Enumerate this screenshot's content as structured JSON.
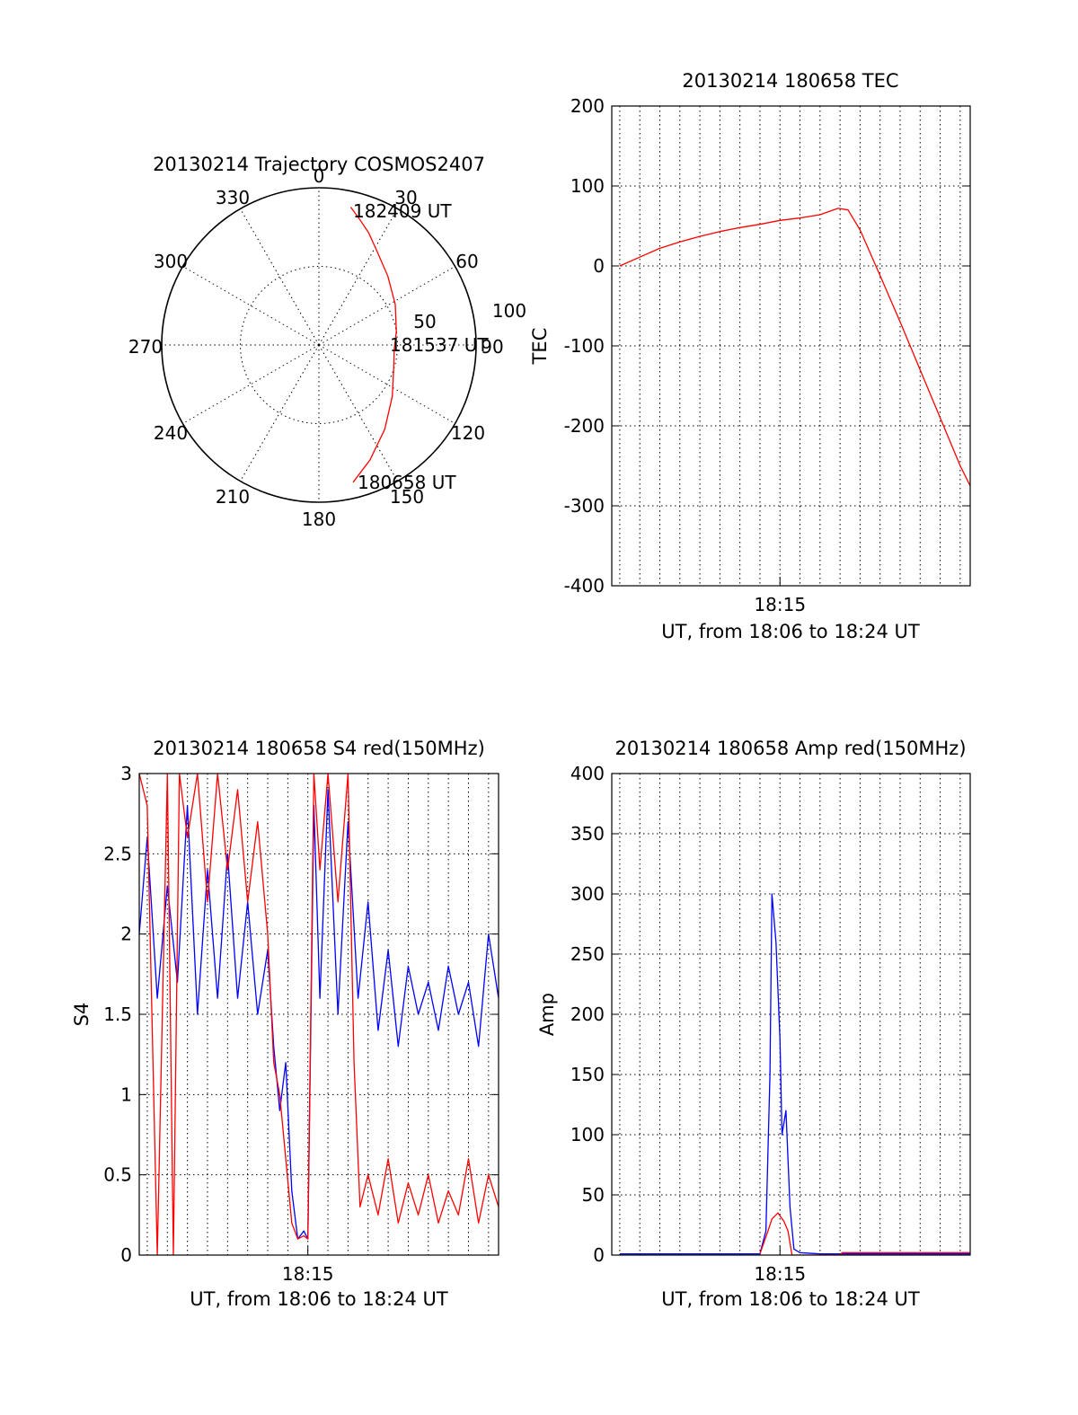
{
  "colors": {
    "red": "#ff0000",
    "blue": "#0000ff",
    "axis": "#000000"
  },
  "chart_data": [
    {
      "id": "trajectory",
      "type": "polar",
      "title": "20130214 Trajectory COSMOS2407",
      "angle_labels": [
        "0",
        "30",
        "60",
        "90",
        "120",
        "150",
        "180",
        "210",
        "240",
        "270",
        "300",
        "330"
      ],
      "radius_labels": [
        "50",
        "100"
      ],
      "rmax": 100,
      "annotations": [
        {
          "label": "182409 UT",
          "az": 13,
          "el_r": 90
        },
        {
          "label": "181537 UT",
          "az": 94,
          "el_r": 48
        },
        {
          "label": "180658 UT",
          "az": 166,
          "el_r": 90
        }
      ],
      "series": [
        {
          "color": "red",
          "az": [
            13,
            18,
            24,
            32,
            45,
            62,
            80,
            94,
            108,
            125,
            142,
            156,
            166
          ],
          "r": [
            90,
            84,
            78,
            70,
            62,
            55,
            50,
            48,
            50,
            57,
            68,
            80,
            90
          ]
        }
      ]
    },
    {
      "id": "tec",
      "type": "line",
      "title": "20130214 180658 TEC",
      "xlabel": "UT, from 18:06 to 18:24 UT",
      "ylabel": "TEC",
      "xlim": [
        6.6,
        24.5
      ],
      "ylim": [
        -400,
        200
      ],
      "yticks": [
        "-400",
        "-300",
        "-200",
        "-100",
        "0",
        "100",
        "200"
      ],
      "xtick_label": {
        "x": 15,
        "label": "18:15"
      },
      "series": [
        {
          "color": "red",
          "x": [
            7.0,
            8.0,
            9.0,
            10.0,
            11.0,
            12.0,
            13.0,
            14.0,
            15.0,
            16.0,
            17.0,
            17.9,
            18.4,
            19.0,
            20.0,
            21.0,
            22.0,
            23.0,
            24.0,
            24.5
          ],
          "y": [
            0,
            11,
            22,
            30,
            37,
            43,
            48,
            52,
            57,
            60,
            64,
            72,
            70,
            45,
            -12,
            -70,
            -130,
            -190,
            -250,
            -275
          ]
        }
      ]
    },
    {
      "id": "s4",
      "type": "line",
      "title": "20130214 180658 S4 red(150MHz)",
      "xlabel": "UT, from 18:06 to 18:24 UT",
      "ylabel": "S4",
      "xlim": [
        6.6,
        24.5
      ],
      "ylim": [
        0,
        3
      ],
      "yticks": [
        "0",
        "0.5",
        "1",
        "1.5",
        "2",
        "2.5",
        "3"
      ],
      "xtick_label": {
        "x": 15,
        "label": "18:15"
      },
      "series": [
        {
          "color": "blue",
          "x": [
            6.6,
            7.0,
            7.5,
            8.0,
            8.5,
            9.0,
            9.5,
            10.0,
            10.5,
            11.0,
            11.5,
            12.0,
            12.5,
            13.0,
            13.3,
            13.6,
            13.9,
            14.2,
            14.5,
            14.8,
            15.0,
            15.3,
            15.6,
            16.0,
            16.5,
            17.0,
            17.5,
            18.0,
            18.5,
            19.0,
            19.5,
            20.0,
            20.5,
            21.0,
            21.5,
            22.0,
            22.5,
            23.0,
            23.5,
            24.0,
            24.5
          ],
          "y": [
            2.0,
            2.6,
            1.6,
            2.3,
            1.7,
            2.8,
            1.5,
            2.4,
            1.6,
            2.5,
            1.6,
            2.2,
            1.5,
            1.9,
            1.3,
            0.9,
            1.2,
            0.4,
            0.1,
            0.15,
            0.1,
            2.8,
            1.6,
            2.9,
            1.5,
            2.7,
            1.6,
            2.2,
            1.4,
            1.9,
            1.3,
            1.8,
            1.5,
            1.7,
            1.4,
            1.8,
            1.5,
            1.7,
            1.3,
            2.0,
            1.6
          ]
        },
        {
          "color": "red",
          "x": [
            6.6,
            7.0,
            7.5,
            8.0,
            8.3,
            8.6,
            9.0,
            9.5,
            10.0,
            10.5,
            11.0,
            11.5,
            12.0,
            12.5,
            13.0,
            13.3,
            13.6,
            13.9,
            14.2,
            14.5,
            14.8,
            15.0,
            15.3,
            15.6,
            16.0,
            16.5,
            17.0,
            17.3,
            17.6,
            18.0,
            18.5,
            19.0,
            19.5,
            20.0,
            20.5,
            21.0,
            21.5,
            22.0,
            22.5,
            23.0,
            23.5,
            24.0,
            24.5
          ],
          "y": [
            3.0,
            2.8,
            0.0,
            3.0,
            0.0,
            3.0,
            2.6,
            3.0,
            2.2,
            3.0,
            2.4,
            2.9,
            2.2,
            2.7,
            2.0,
            1.2,
            1.0,
            0.6,
            0.2,
            0.1,
            0.12,
            0.1,
            3.0,
            2.4,
            3.0,
            2.2,
            3.0,
            1.2,
            0.3,
            0.5,
            0.25,
            0.6,
            0.2,
            0.45,
            0.25,
            0.5,
            0.2,
            0.4,
            0.25,
            0.6,
            0.2,
            0.5,
            0.3
          ]
        }
      ]
    },
    {
      "id": "amp",
      "type": "line",
      "title": "20130214 180658 Amp red(150MHz)",
      "xlabel": "UT, from 18:06 to 18:24 UT",
      "ylabel": "Amp",
      "xlim": [
        6.6,
        24.5
      ],
      "ylim": [
        0,
        400
      ],
      "yticks": [
        "0",
        "50",
        "100",
        "150",
        "200",
        "250",
        "300",
        "350",
        "400"
      ],
      "xtick_label": {
        "x": 15,
        "label": "18:15"
      },
      "series": [
        {
          "color": "blue",
          "x": [
            7.0,
            10.0,
            13.0,
            14.0,
            14.3,
            14.5,
            14.6,
            14.8,
            15.0,
            15.1,
            15.3,
            15.5,
            15.7,
            16.0,
            17.0,
            18.0,
            20.0,
            22.0,
            24.5
          ],
          "y": [
            1,
            1,
            1,
            1,
            20,
            150,
            300,
            260,
            180,
            100,
            120,
            40,
            5,
            2,
            1,
            1,
            1,
            1,
            1
          ]
        },
        {
          "color": "red",
          "x": [
            14.0,
            14.4,
            14.6,
            14.9,
            15.2,
            15.4,
            15.6,
            18.0,
            18.1,
            24.5
          ],
          "y": [
            1,
            20,
            30,
            35,
            28,
            20,
            0,
            0,
            2,
            2
          ]
        }
      ]
    }
  ]
}
